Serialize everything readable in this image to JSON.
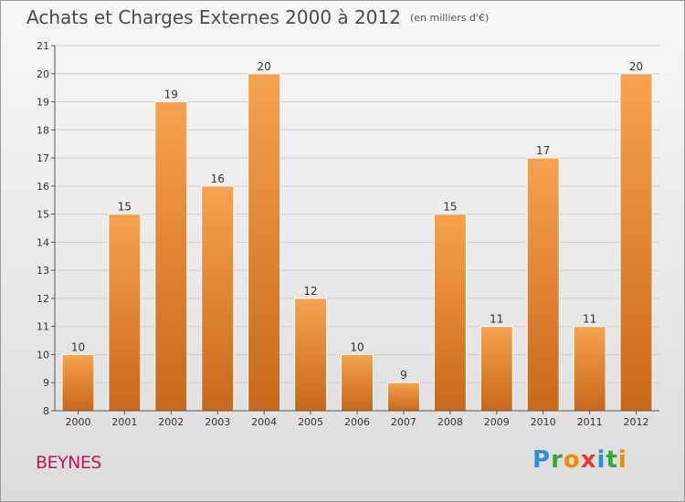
{
  "header": {
    "title": "Achats et Charges Externes 2000 à 2012",
    "subtitle": "(en milliers d'€)"
  },
  "footer": {
    "city": "BEYNES",
    "brand_letters": [
      "P",
      "r",
      "o",
      "x",
      "i",
      "t",
      "i"
    ],
    "brand_colors": [
      "#2d8fd5",
      "#3aa63a",
      "#f08a00",
      "#e53935",
      "#2d8fd5",
      "#3aa63a",
      "#f08a00"
    ]
  },
  "chart_data": {
    "type": "bar",
    "title": "Achats et Charges Externes 2000 à 2012",
    "categories": [
      "2000",
      "2001",
      "2002",
      "2003",
      "2004",
      "2005",
      "2006",
      "2007",
      "2008",
      "2009",
      "2010",
      "2011",
      "2012"
    ],
    "values": [
      10,
      15,
      19,
      16,
      20,
      12,
      10,
      9,
      15,
      11,
      17,
      11,
      20
    ],
    "ylim": [
      8,
      21
    ],
    "yticks": [
      8,
      9,
      10,
      11,
      12,
      13,
      14,
      15,
      16,
      17,
      18,
      19,
      20,
      21
    ],
    "grid": true,
    "bar_color_light": "#f6a24e",
    "bar_color_dark": "#c8681a"
  }
}
